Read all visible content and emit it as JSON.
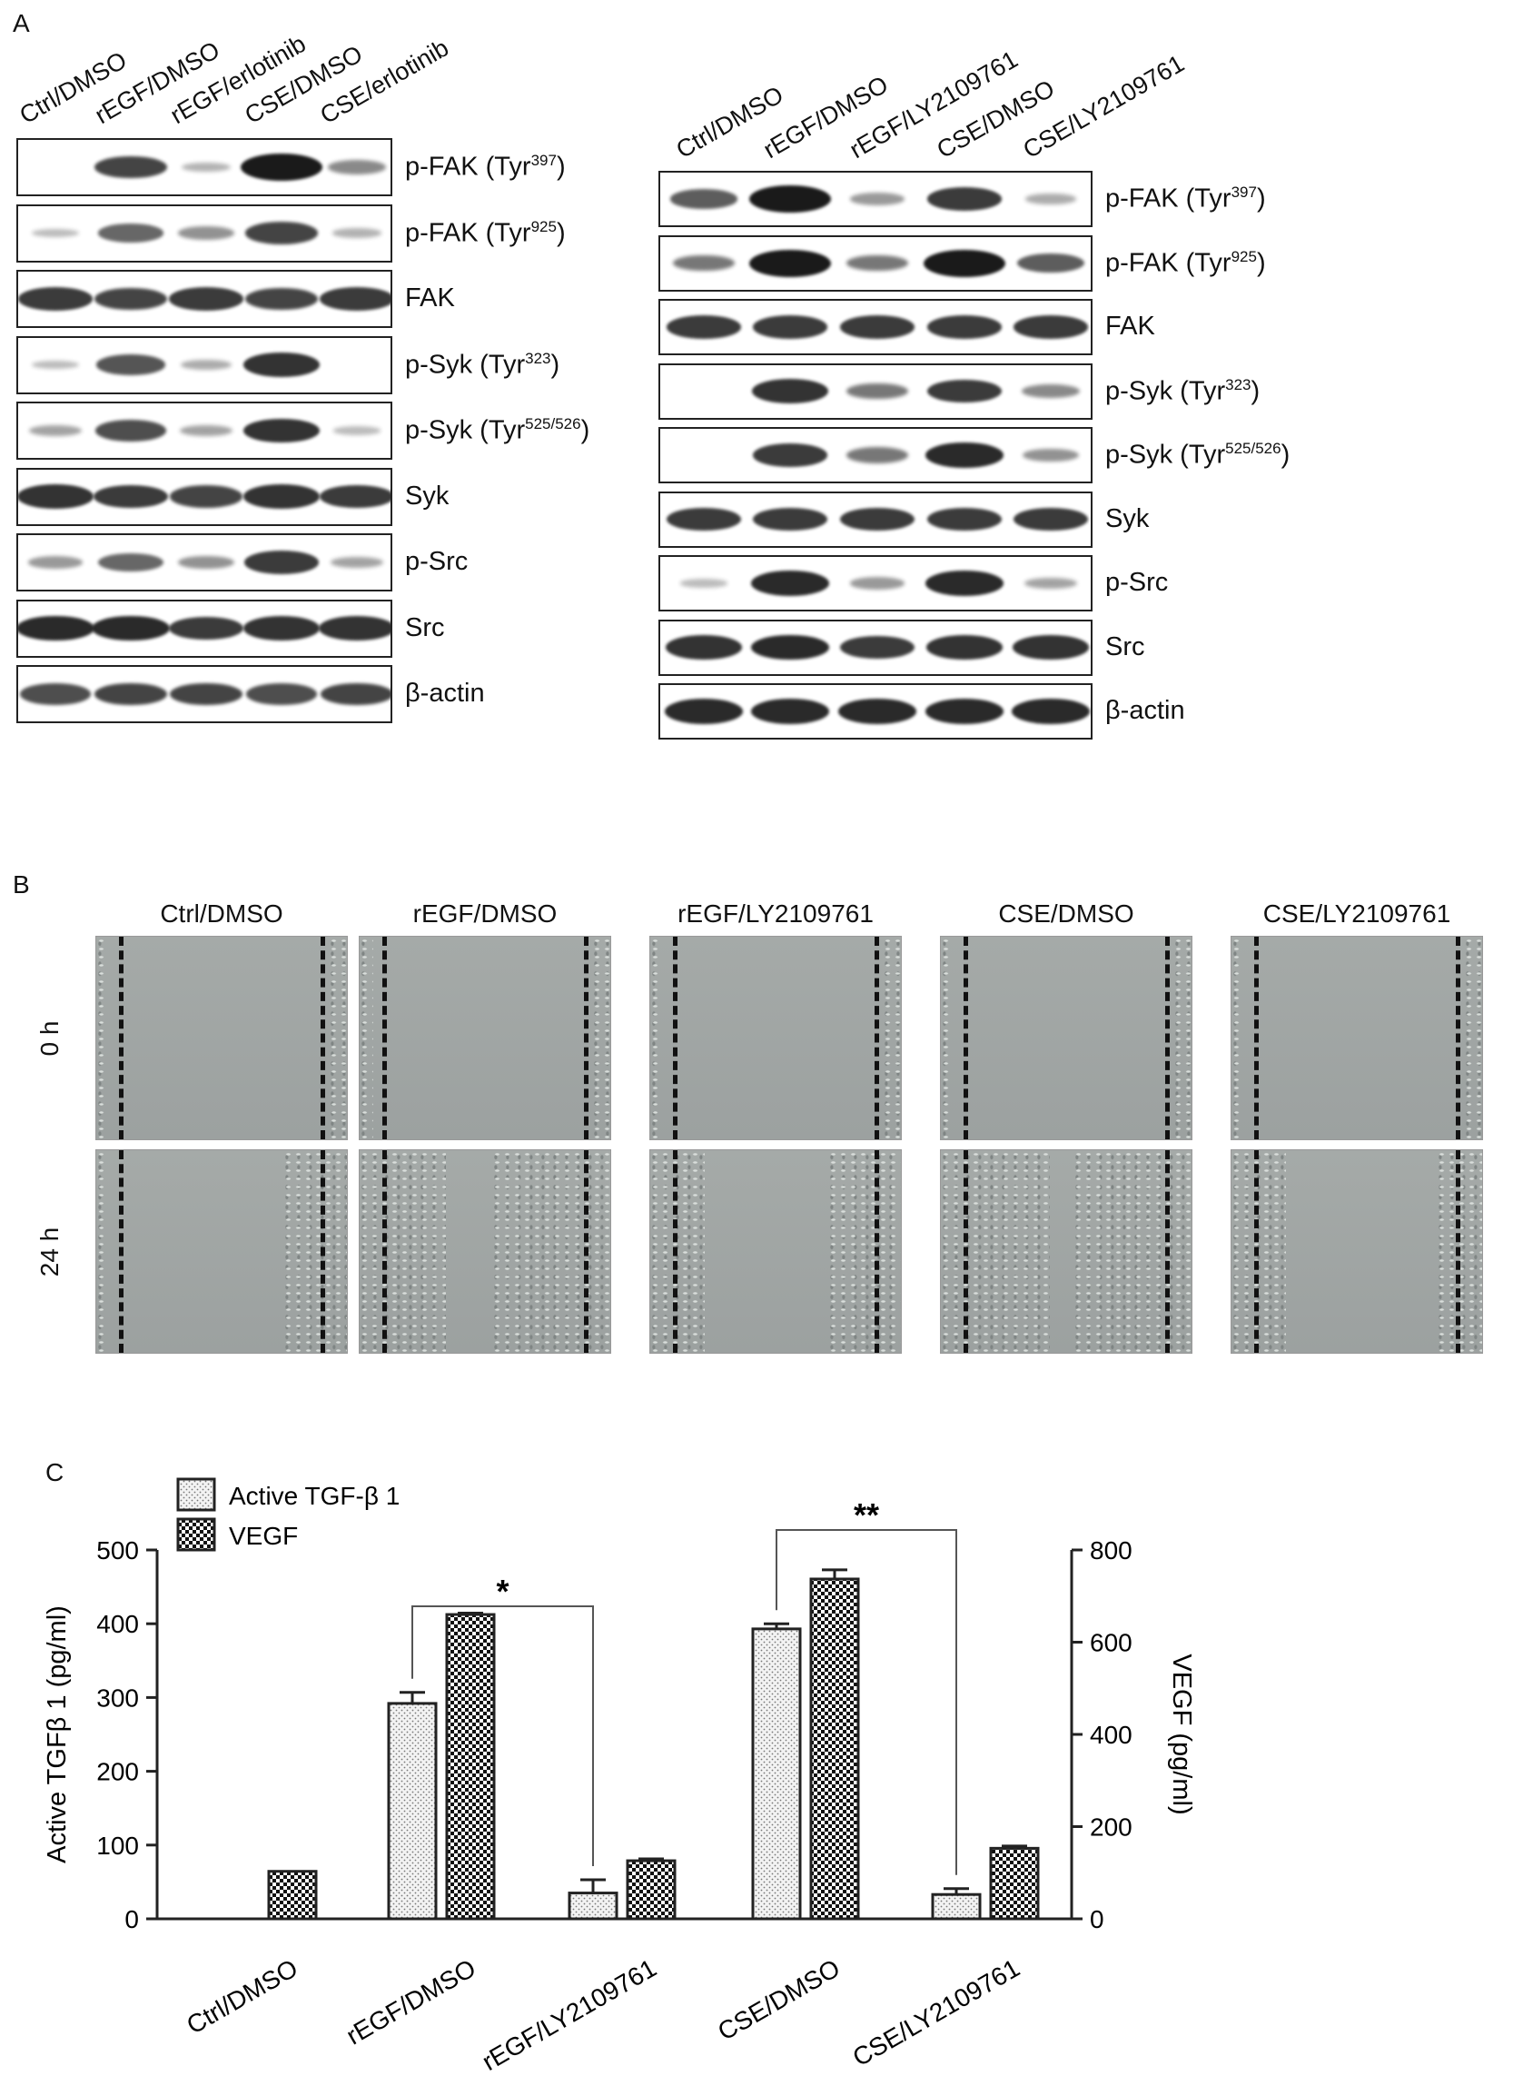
{
  "panelA": {
    "letter": "A",
    "left": {
      "lanes": [
        "Ctrl/DMSO",
        "rEGF/DMSO",
        "rEGF/erlotinib",
        "CSE/DMSO",
        "CSE/erlotinib"
      ],
      "rows": [
        {
          "label": "p-FAK (Tyr",
          "sup": "397",
          "suffix": ")",
          "bands": [
            0.0,
            0.75,
            0.1,
            1.0,
            0.35
          ]
        },
        {
          "label": "p-FAK (Tyr",
          "sup": "925",
          "suffix": ")",
          "bands": [
            0.05,
            0.55,
            0.3,
            0.75,
            0.1
          ]
        },
        {
          "label": "FAK",
          "sup": "",
          "suffix": "",
          "bands": [
            0.8,
            0.75,
            0.8,
            0.75,
            0.8
          ]
        },
        {
          "label": "p-Syk (Tyr",
          "sup": "323",
          "suffix": ")",
          "bands": [
            0.05,
            0.65,
            0.15,
            0.85,
            0.0
          ]
        },
        {
          "label": "p-Syk (Tyr",
          "sup": "525/526",
          "suffix": ")",
          "bands": [
            0.2,
            0.7,
            0.2,
            0.85,
            0.05
          ]
        },
        {
          "label": "Syk",
          "sup": "",
          "suffix": "",
          "bands": [
            0.85,
            0.8,
            0.75,
            0.85,
            0.8
          ]
        },
        {
          "label": "p-Src",
          "sup": "",
          "suffix": "",
          "bands": [
            0.25,
            0.55,
            0.3,
            0.8,
            0.2
          ]
        },
        {
          "label": "Src",
          "sup": "",
          "suffix": "",
          "bands": [
            0.9,
            0.9,
            0.8,
            0.85,
            0.85
          ]
        },
        {
          "label": "β-actin",
          "sup": "",
          "suffix": "",
          "bands": [
            0.7,
            0.75,
            0.75,
            0.7,
            0.75
          ]
        }
      ]
    },
    "right": {
      "lanes": [
        "Ctrl/DMSO",
        "rEGF/DMSO",
        "rEGF/LY2109761",
        "CSE/DMSO",
        "CSE/LY2109761"
      ],
      "rows": [
        {
          "label": "p-FAK (Tyr",
          "sup": "397",
          "suffix": ")",
          "bands": [
            0.6,
            1.0,
            0.25,
            0.8,
            0.15
          ]
        },
        {
          "label": "p-FAK (Tyr",
          "sup": "925",
          "suffix": ")",
          "bands": [
            0.45,
            1.0,
            0.45,
            1.0,
            0.6
          ]
        },
        {
          "label": "FAK",
          "sup": "",
          "suffix": "",
          "bands": [
            0.8,
            0.8,
            0.8,
            0.8,
            0.8
          ]
        },
        {
          "label": "p-Syk (Tyr",
          "sup": "323",
          "suffix": ")",
          "bands": [
            0.0,
            0.85,
            0.45,
            0.8,
            0.35
          ]
        },
        {
          "label": "p-Syk (Tyr",
          "sup": "525/526",
          "suffix": ")",
          "bands": [
            0.0,
            0.8,
            0.45,
            0.9,
            0.3
          ]
        },
        {
          "label": "Syk",
          "sup": "",
          "suffix": "",
          "bands": [
            0.8,
            0.8,
            0.8,
            0.8,
            0.8
          ]
        },
        {
          "label": "p-Src",
          "sup": "",
          "suffix": "",
          "bands": [
            0.05,
            0.9,
            0.25,
            0.9,
            0.2
          ]
        },
        {
          "label": "Src",
          "sup": "",
          "suffix": "",
          "bands": [
            0.85,
            0.9,
            0.8,
            0.85,
            0.85
          ]
        },
        {
          "label": "β-actin",
          "sup": "",
          "suffix": "",
          "bands": [
            0.9,
            0.9,
            0.9,
            0.9,
            0.9
          ]
        }
      ]
    }
  },
  "panelB": {
    "letter": "B",
    "columns": [
      "Ctrl/DMSO",
      "rEGF/DMSO",
      "rEGF/LY2109761",
      "CSE/DMSO",
      "CSE/LY2109761"
    ],
    "times": [
      "0 h",
      "24 h"
    ]
  },
  "panelC": {
    "letter": "C",
    "chart_data": {
      "type": "bar",
      "categories": [
        "Ctrl/DMSO",
        "rEGF/DMSO",
        "rEGF/LY2109761",
        "CSE/DMSO",
        "CSE/LY2109761"
      ],
      "series": [
        {
          "name": "Active TGF-β 1",
          "axis": "left",
          "values": [
            0,
            292,
            35,
            393,
            33
          ],
          "errors": [
            0,
            15,
            18,
            7,
            8
          ]
        },
        {
          "name": "VEGF",
          "axis": "right",
          "values": [
            103,
            660,
            126,
            737,
            153
          ],
          "errors": [
            0,
            3,
            4,
            20,
            5
          ]
        }
      ],
      "ylabel_left": "Active TGFβ 1 (pg/ml)",
      "ylabel_right": "VEGF (pg/ml)",
      "ylim_left": [
        0,
        500
      ],
      "ylim_right": [
        0,
        800
      ],
      "yticks_left": [
        0,
        100,
        200,
        300,
        400,
        500
      ],
      "yticks_right": [
        0,
        200,
        400,
        600,
        800
      ],
      "legend_position": "top-left",
      "annotations": [
        {
          "from_category": 1,
          "to_category": 2,
          "text": "*"
        },
        {
          "from_category": 3,
          "to_category": 4,
          "text": "**"
        }
      ]
    }
  }
}
